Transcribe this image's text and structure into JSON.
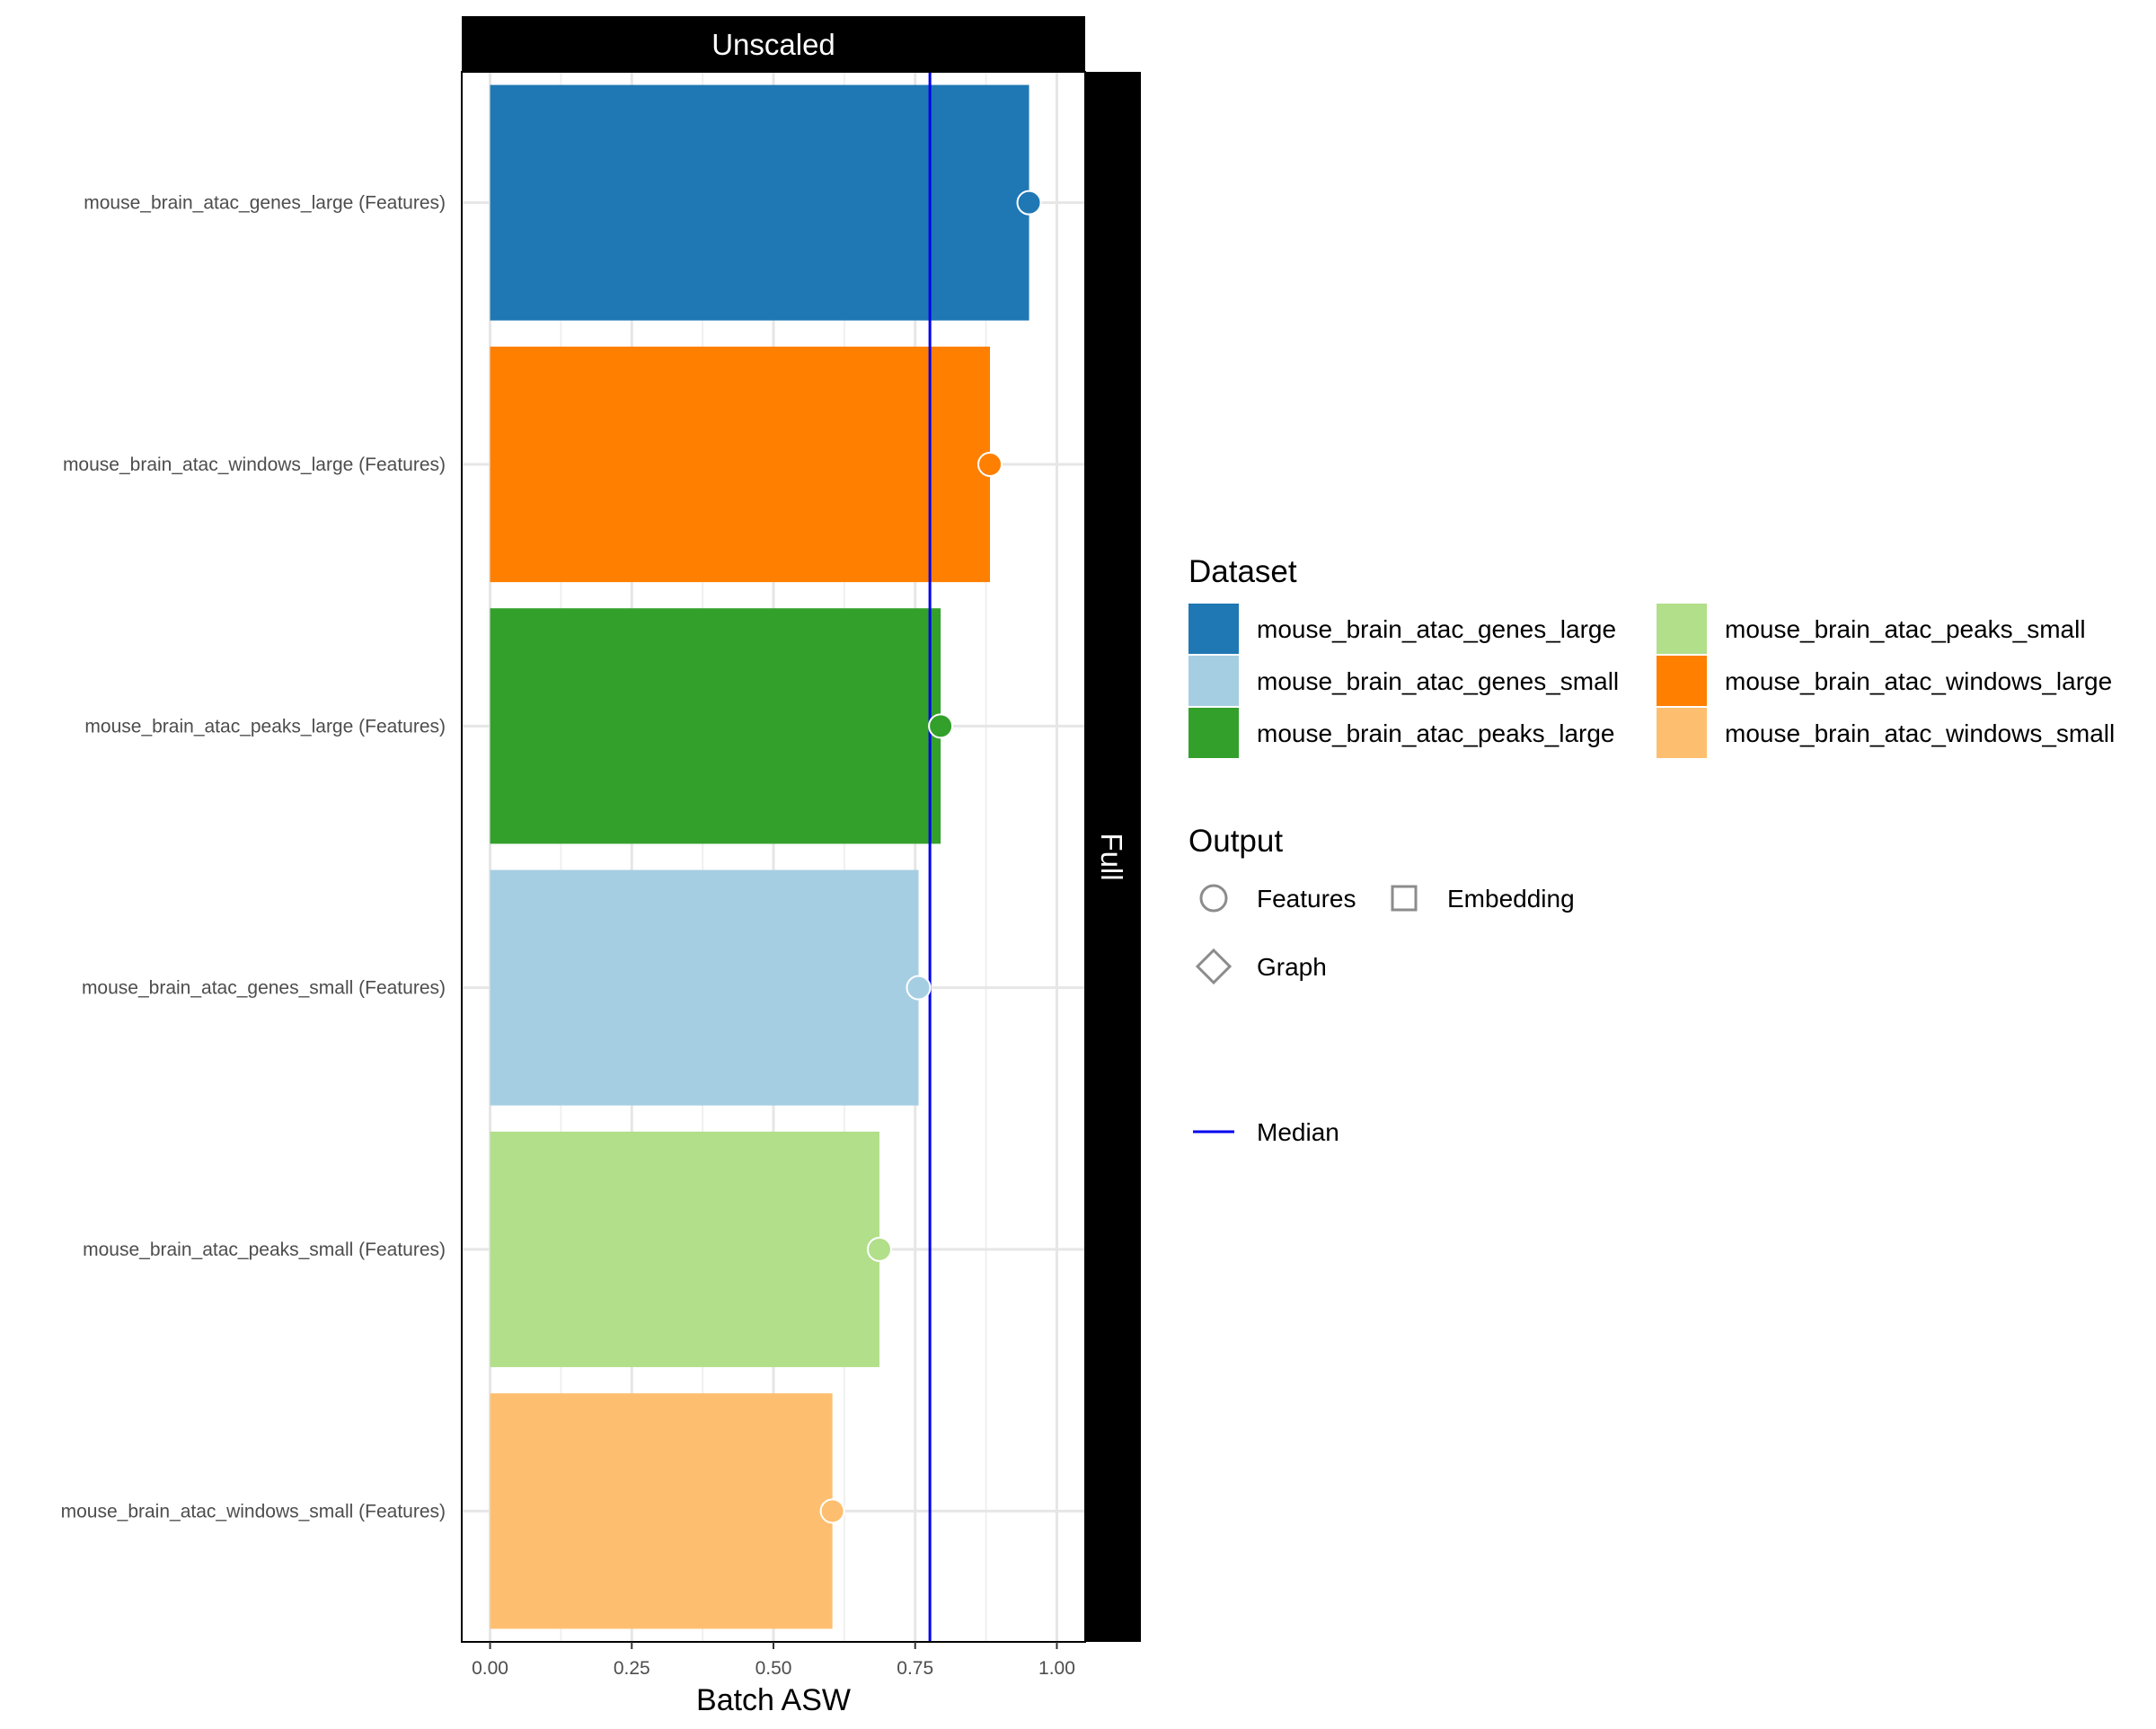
{
  "chart_data": {
    "type": "bar",
    "facet_top": "Unscaled",
    "facet_right": "Full",
    "xlabel": "Batch ASW",
    "ylabel": "",
    "xlim": [
      -0.05,
      1.05
    ],
    "xticks": [
      0,
      0.25,
      0.5,
      0.75,
      1
    ],
    "xtick_labels": [
      "0.00",
      "0.25",
      "0.50",
      "0.75",
      "1.00"
    ],
    "grid": true,
    "categories": [
      "mouse_brain_atac_genes_large (Features)",
      "mouse_brain_atac_windows_large (Features)",
      "mouse_brain_atac_peaks_large (Features)",
      "mouse_brain_atac_genes_small (Features)",
      "mouse_brain_atac_peaks_small (Features)",
      "mouse_brain_atac_windows_small (Features)"
    ],
    "values": [
      0.951,
      0.882,
      0.795,
      0.756,
      0.687,
      0.604
    ],
    "bar_colors": [
      "#1f78b4",
      "#ff7f00",
      "#33a02c",
      "#a6cee3",
      "#b2df8a",
      "#fdbf6f"
    ],
    "point_shape": "circle",
    "median": 0.776,
    "median_color": "#0000ee",
    "legend_placement": "right",
    "legend": {
      "dataset_title": "Dataset",
      "dataset_items": [
        {
          "label": "mouse_brain_atac_genes_large",
          "color": "#1f78b4"
        },
        {
          "label": "mouse_brain_atac_genes_small",
          "color": "#a6cee3"
        },
        {
          "label": "mouse_brain_atac_peaks_large",
          "color": "#33a02c"
        },
        {
          "label": "mouse_brain_atac_peaks_small",
          "color": "#b2df8a"
        },
        {
          "label": "mouse_brain_atac_windows_large",
          "color": "#ff7f00"
        },
        {
          "label": "mouse_brain_atac_windows_small",
          "color": "#fdbf6f"
        }
      ],
      "output_title": "Output",
      "output_items": [
        {
          "label": "Features",
          "shape": "circle"
        },
        {
          "label": "Embedding",
          "shape": "square"
        },
        {
          "label": "Graph",
          "shape": "diamond"
        }
      ],
      "median_label": "Median"
    }
  }
}
